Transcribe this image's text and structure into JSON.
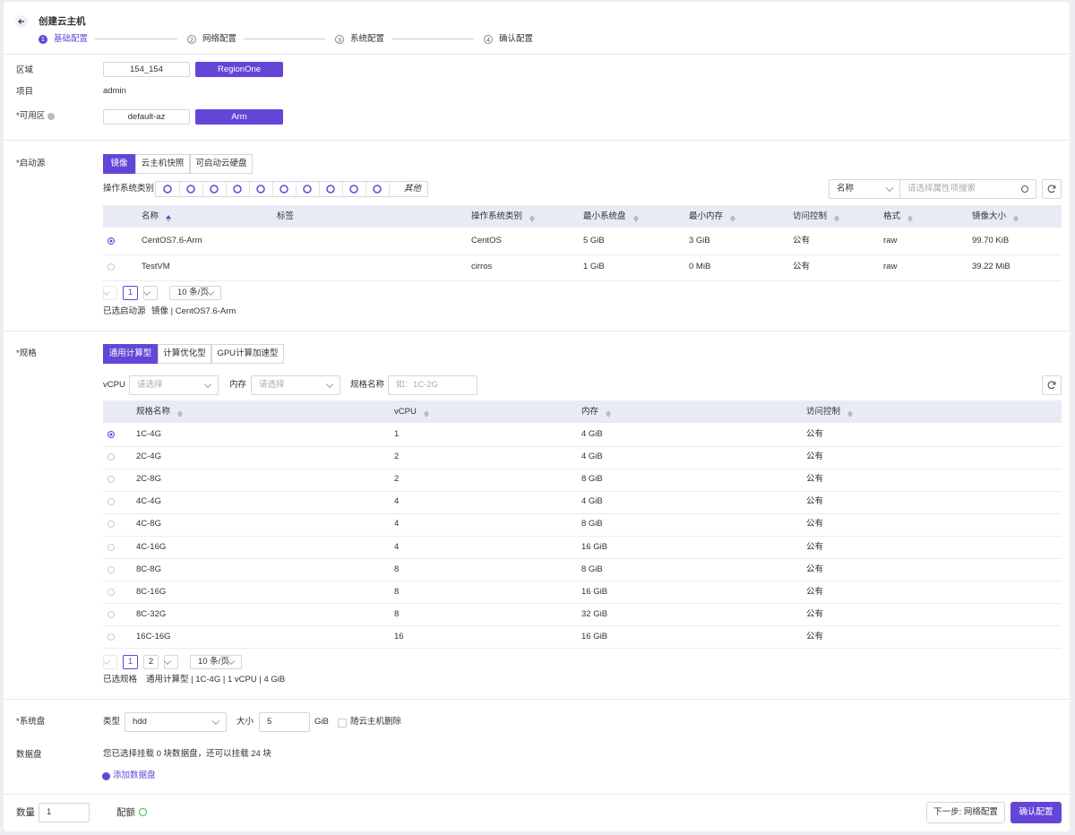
{
  "header": {
    "title": "创建云主机",
    "steps": [
      {
        "num": "1",
        "label": "基础配置"
      },
      {
        "num": "2",
        "label": "网络配置"
      },
      {
        "num": "3",
        "label": "系统配置"
      },
      {
        "num": "4",
        "label": "确认配置"
      }
    ]
  },
  "region": {
    "label": "区域",
    "options": [
      "154_154",
      "RegionOne"
    ]
  },
  "project": {
    "label": "项目",
    "value": "admin"
  },
  "zone": {
    "label": "*可用区",
    "options": [
      "default-az",
      "Arm"
    ]
  },
  "boot": {
    "label": "*启动源",
    "tabs": [
      "镜像",
      "云主机快照",
      "可启动云硬盘"
    ],
    "os_label": "操作系统类别",
    "os_other": "其他",
    "search_field": "名称",
    "search_placeholder": "请选择属性项搜索",
    "columns": [
      "名称",
      "标签",
      "操作系统类别",
      "最小系统盘",
      "最小内存",
      "访问控制",
      "格式",
      "镜像大小"
    ],
    "rows": [
      [
        "CentOS7.6-Arm",
        "",
        "CentOS",
        "5 GiB",
        "3 GiB",
        "公有",
        "raw",
        "99.70 KiB"
      ],
      [
        "TestVM",
        "",
        "cirros",
        "1 GiB",
        "0 MiB",
        "公有",
        "raw",
        "39.22 MiB"
      ]
    ],
    "pages": [
      "1"
    ],
    "page_size": "10 条/页",
    "selected_label": "已选启动源",
    "selected_value": "镜像 | CentOS7.6-Arm"
  },
  "flavor": {
    "label": "*规格",
    "tabs": [
      "通用计算型",
      "计算优化型",
      "GPU计算加速型"
    ],
    "filters": [
      {
        "label": "vCPU",
        "placeholder": "请选择"
      },
      {
        "label": "内存",
        "placeholder": "请选择"
      },
      {
        "label": "规格名称",
        "placeholder": "如：1C-2G"
      }
    ],
    "columns": [
      "规格名称",
      "vCPU",
      "内存",
      "访问控制"
    ],
    "rows": [
      [
        "1C-4G",
        "1",
        "4 GiB",
        "公有"
      ],
      [
        "2C-4G",
        "2",
        "4 GiB",
        "公有"
      ],
      [
        "2C-8G",
        "2",
        "8 GiB",
        "公有"
      ],
      [
        "4C-4G",
        "4",
        "4 GiB",
        "公有"
      ],
      [
        "4C-8G",
        "4",
        "8 GiB",
        "公有"
      ],
      [
        "4C-16G",
        "4",
        "16 GiB",
        "公有"
      ],
      [
        "8C-8G",
        "8",
        "8 GiB",
        "公有"
      ],
      [
        "8C-16G",
        "8",
        "16 GiB",
        "公有"
      ],
      [
        "8C-32G",
        "8",
        "32 GiB",
        "公有"
      ],
      [
        "16C-16G",
        "16",
        "16 GiB",
        "公有"
      ]
    ],
    "pages": [
      "1",
      "2"
    ],
    "page_size": "10 条/页",
    "selected_label": "已选规格",
    "selected_value": "通用计算型 | 1C-4G | 1 vCPU | 4 GiB"
  },
  "system_disk": {
    "label": "*系统盘",
    "type_label": "类型",
    "type_value": "hdd",
    "size_label": "大小",
    "size_value": "5",
    "unit": "GiB",
    "delete_label": "随云主机删除"
  },
  "data_disk": {
    "label": "数据盘",
    "info": "您已选择挂载 0 块数据盘，还可以挂载 24 块",
    "add": "添加数据盘"
  },
  "footer": {
    "count_label": "数量",
    "count_value": "1",
    "quota_label": "配额",
    "next": "下一步: 网络配置",
    "confirm": "确认配置"
  }
}
